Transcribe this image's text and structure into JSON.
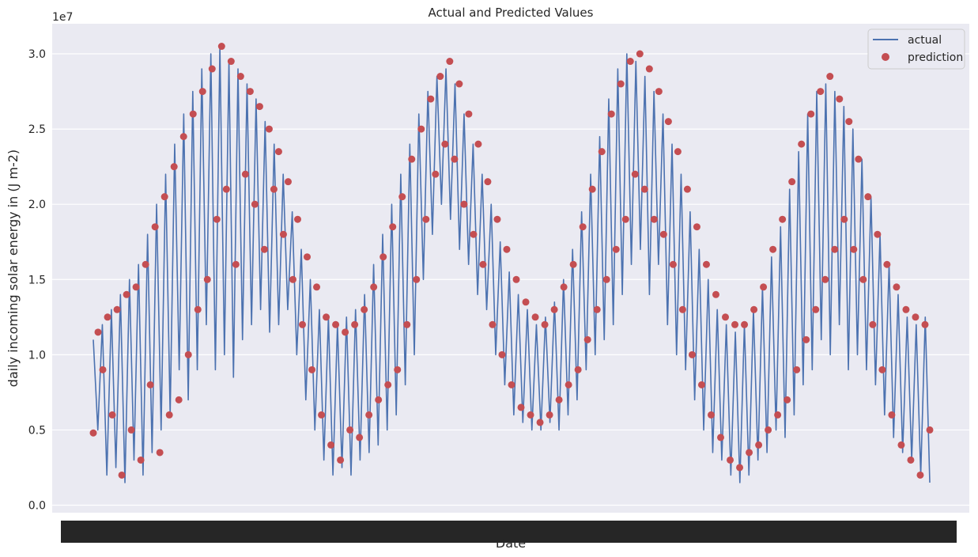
{
  "chart_data": {
    "type": "line",
    "title": "Actual and Predicted Values",
    "xlabel": "Date",
    "ylabel": "daily incoming solar energy in (J m-2)",
    "y_offset_label": "1e7",
    "ylim": [
      -0.05,
      3.2
    ],
    "yticks": [
      0.0,
      0.5,
      1.0,
      1.5,
      2.0,
      2.5,
      3.0
    ],
    "ytick_labels": [
      "0.0",
      "0.5",
      "1.0",
      "1.5",
      "2.0",
      "2.5",
      "3.0"
    ],
    "y_units": "1e7 J m-2",
    "x_tick_labels_note": "overlapping date tick labels (illegible)",
    "grid": true,
    "legend_position": "top-right",
    "colors": {
      "actual": "#4c72b0",
      "prediction": "#c44e52",
      "plot_background": "#eaeaf2",
      "grid": "#ffffff"
    },
    "series": [
      {
        "name": "actual",
        "kind": "line",
        "values": [
          1.1,
          0.5,
          1.2,
          0.2,
          1.3,
          0.25,
          1.4,
          0.15,
          1.5,
          0.3,
          1.6,
          0.2,
          1.8,
          0.35,
          2.0,
          0.5,
          2.2,
          0.6,
          2.4,
          0.9,
          2.6,
          0.7,
          2.75,
          0.9,
          2.9,
          1.2,
          3.0,
          0.9,
          3.05,
          1.0,
          2.95,
          0.85,
          2.9,
          1.1,
          2.8,
          1.2,
          2.7,
          1.3,
          2.55,
          1.15,
          2.4,
          1.2,
          2.2,
          1.3,
          1.95,
          1.0,
          1.7,
          0.7,
          1.5,
          0.5,
          1.3,
          0.3,
          1.25,
          0.2,
          1.2,
          0.25,
          1.25,
          0.2,
          1.3,
          0.3,
          1.4,
          0.35,
          1.6,
          0.4,
          1.8,
          0.5,
          2.0,
          0.6,
          2.2,
          0.8,
          2.4,
          1.0,
          2.6,
          1.5,
          2.75,
          1.8,
          2.85,
          2.0,
          2.9,
          1.9,
          2.8,
          1.7,
          2.6,
          1.6,
          2.4,
          1.4,
          2.2,
          1.3,
          2.0,
          1.0,
          1.75,
          0.8,
          1.55,
          0.6,
          1.4,
          0.55,
          1.3,
          0.5,
          1.2,
          0.5,
          1.25,
          0.55,
          1.35,
          0.5,
          1.5,
          0.6,
          1.7,
          0.7,
          1.95,
          0.9,
          2.2,
          1.0,
          2.45,
          1.1,
          2.7,
          1.2,
          2.9,
          1.4,
          3.0,
          1.6,
          2.95,
          1.7,
          2.85,
          1.4,
          2.75,
          1.6,
          2.6,
          1.2,
          2.4,
          1.0,
          2.2,
          0.9,
          1.95,
          0.7,
          1.7,
          0.5,
          1.5,
          0.35,
          1.3,
          0.3,
          1.2,
          0.2,
          1.15,
          0.15,
          1.2,
          0.2,
          1.3,
          0.3,
          1.45,
          0.35,
          1.65,
          0.5,
          1.85,
          0.45,
          2.1,
          0.6,
          2.35,
          0.8,
          2.6,
          0.9,
          2.75,
          1.1,
          2.8,
          1.0,
          2.75,
          1.2,
          2.65,
          0.9,
          2.5,
          1.0,
          2.3,
          0.9,
          2.05,
          0.8,
          1.8,
          0.6,
          1.6,
          0.45,
          1.4,
          0.35,
          1.25,
          0.3,
          1.2,
          0.2,
          1.25,
          0.15
        ]
      },
      {
        "name": "prediction",
        "kind": "scatter",
        "values": [
          0.48,
          1.15,
          0.9,
          1.25,
          0.6,
          1.3,
          0.2,
          1.4,
          0.5,
          1.45,
          0.3,
          1.6,
          0.8,
          1.85,
          0.35,
          2.05,
          0.6,
          2.25,
          0.7,
          2.45,
          1.0,
          2.6,
          1.3,
          2.75,
          1.5,
          2.9,
          1.9,
          3.05,
          2.1,
          2.95,
          1.6,
          2.85,
          2.2,
          2.75,
          2.0,
          2.65,
          1.7,
          2.5,
          2.1,
          2.35,
          1.8,
          2.15,
          1.5,
          1.9,
          1.2,
          1.65,
          0.9,
          1.45,
          0.6,
          1.25,
          0.4,
          1.2,
          0.3,
          1.15,
          0.5,
          1.2,
          0.45,
          1.3,
          0.6,
          1.45,
          0.7,
          1.65,
          0.8,
          1.85,
          0.9,
          2.05,
          1.2,
          2.3,
          1.5,
          2.5,
          1.9,
          2.7,
          2.2,
          2.85,
          2.4,
          2.95,
          2.3,
          2.8,
          2.0,
          2.6,
          1.8,
          2.4,
          1.6,
          2.15,
          1.2,
          1.9,
          1.0,
          1.7,
          0.8,
          1.5,
          0.65,
          1.35,
          0.6,
          1.25,
          0.55,
          1.2,
          0.6,
          1.3,
          0.7,
          1.45,
          0.8,
          1.6,
          0.9,
          1.85,
          1.1,
          2.1,
          1.3,
          2.35,
          1.5,
          2.6,
          1.7,
          2.8,
          1.9,
          2.95,
          2.2,
          3.0,
          2.1,
          2.9,
          1.9,
          2.75,
          1.8,
          2.55,
          1.6,
          2.35,
          1.3,
          2.1,
          1.0,
          1.85,
          0.8,
          1.6,
          0.6,
          1.4,
          0.45,
          1.25,
          0.3,
          1.2,
          0.25,
          1.2,
          0.35,
          1.3,
          0.4,
          1.45,
          0.5,
          1.7,
          0.6,
          1.9,
          0.7,
          2.15,
          0.9,
          2.4,
          1.1,
          2.6,
          1.3,
          2.75,
          1.5,
          2.85,
          1.7,
          2.7,
          1.9,
          2.55,
          1.7,
          2.3,
          1.5,
          2.05,
          1.2,
          1.8,
          0.9,
          1.6,
          0.6,
          1.45,
          0.4,
          1.3,
          0.3,
          1.25,
          0.2,
          1.2,
          0.5
        ]
      }
    ]
  }
}
